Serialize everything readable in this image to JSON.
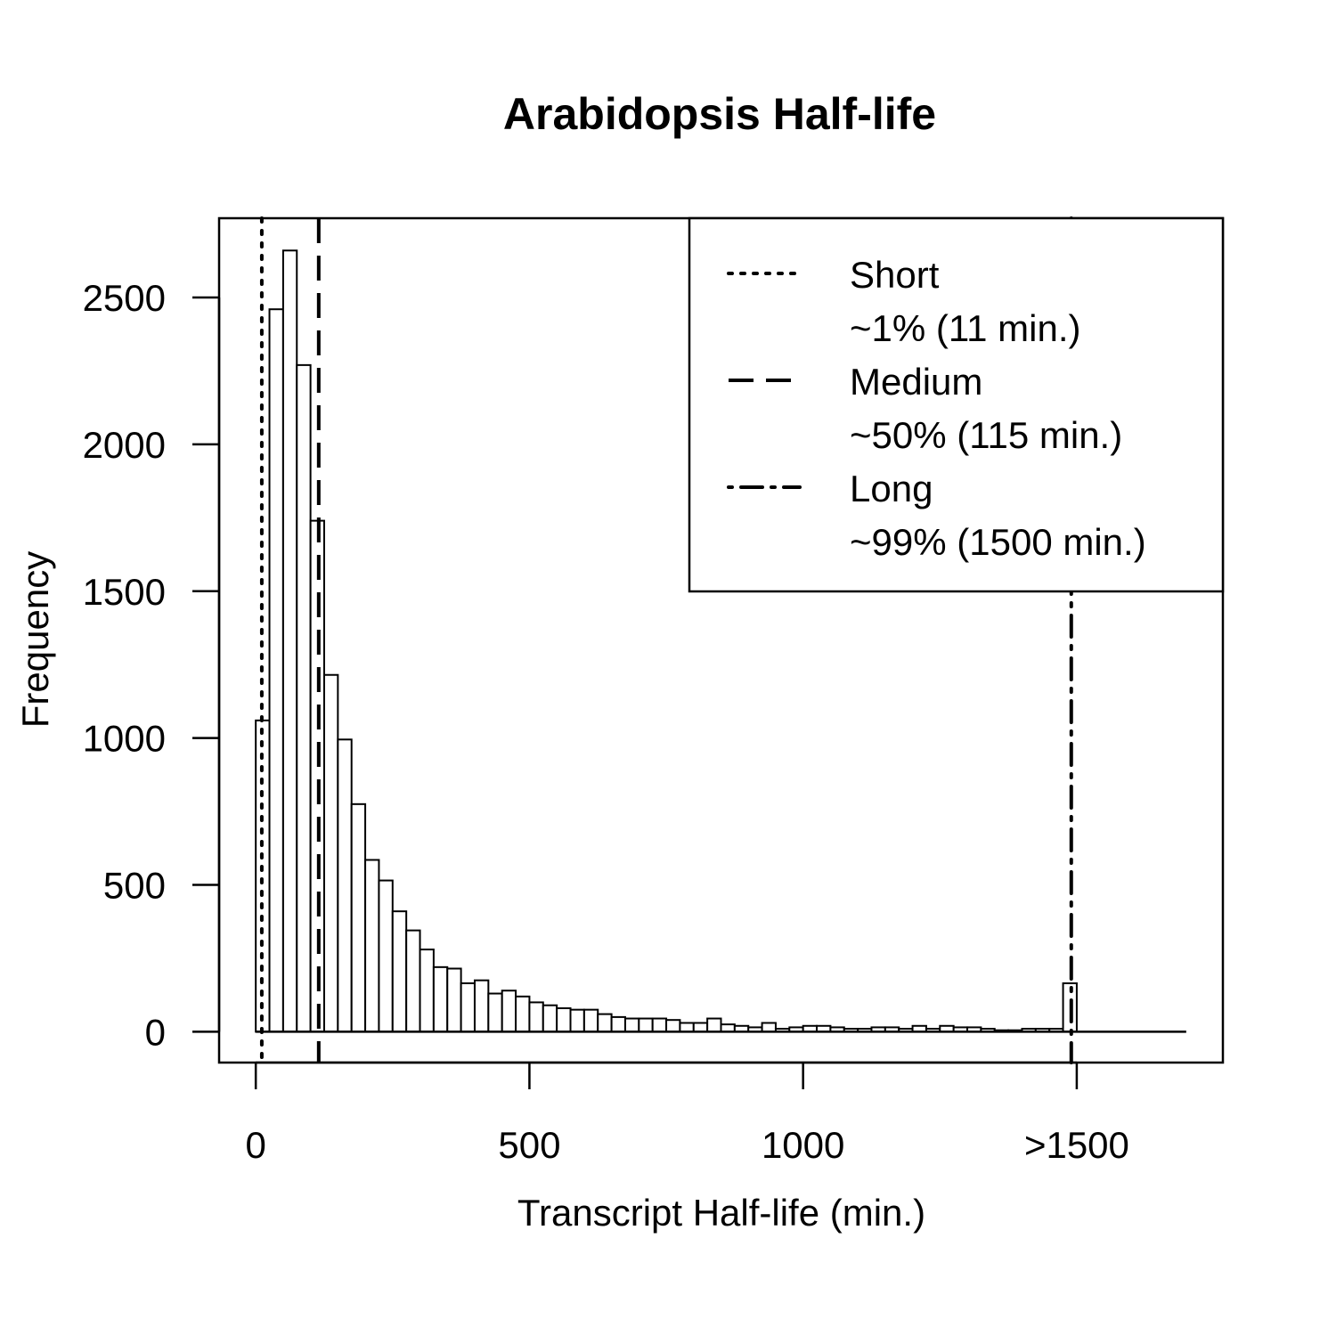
{
  "chart_data": {
    "type": "bar",
    "title": "Arabidopsis Half-life",
    "xlabel": "Transcript Half-life (min.)",
    "ylabel": "Frequency",
    "xlim": [
      -67,
      1767
    ],
    "ylim": [
      -105,
      2770
    ],
    "x_ticks": [
      {
        "value": 0,
        "label": "0"
      },
      {
        "value": 500,
        "label": "500"
      },
      {
        "value": 1000,
        "label": "1000"
      },
      {
        "value": 1500,
        "label": ">1500"
      }
    ],
    "y_ticks": [
      {
        "value": 0,
        "label": "0"
      },
      {
        "value": 500,
        "label": "500"
      },
      {
        "value": 1000,
        "label": "1000"
      },
      {
        "value": 1500,
        "label": "1500"
      },
      {
        "value": 2000,
        "label": "2000"
      },
      {
        "value": 2500,
        "label": "2500"
      }
    ],
    "bin_width": 25,
    "bin_start": 0,
    "x_max": 1700,
    "values": [
      1060,
      2460,
      2660,
      2270,
      1740,
      1215,
      995,
      775,
      585,
      515,
      410,
      345,
      280,
      220,
      215,
      165,
      175,
      130,
      140,
      120,
      100,
      90,
      80,
      75,
      75,
      60,
      50,
      45,
      45,
      45,
      40,
      30,
      30,
      45,
      25,
      20,
      15,
      30,
      10,
      15,
      20,
      20,
      15,
      10,
      10,
      15,
      15,
      10,
      20,
      10,
      20,
      15,
      15,
      10,
      5,
      5,
      10,
      10,
      10,
      165,
      0,
      0,
      0,
      0,
      0,
      0,
      0,
      0
    ],
    "reference_lines": [
      {
        "name": "Short",
        "detail": "~1% (11 min.)",
        "x": 11,
        "style": "dotted"
      },
      {
        "name": "Medium",
        "detail": "~50% (115 min.)",
        "x": 115,
        "style": "dashed"
      },
      {
        "name": "Long",
        "detail": "~99% (1500 min.)",
        "x": 1490,
        "style": "dashdot"
      }
    ],
    "legend_position": "top-right",
    "grid": false
  }
}
